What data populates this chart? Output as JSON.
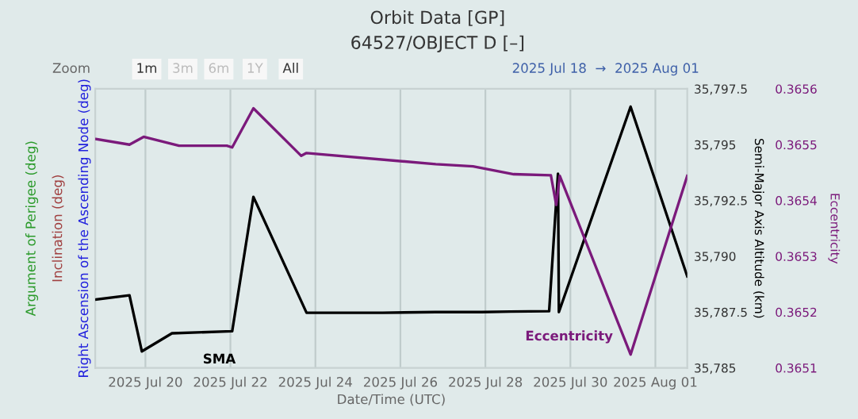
{
  "chart_data": {
    "type": "line",
    "title": "Orbit Data [GP]",
    "subtitle": "64527/OBJECT D [–]",
    "xlabel": "Date/Time (UTC)",
    "ylabel": "Right Ascension of the Ascending Node (deg)",
    "y2label": "Semi-Major Axis Altitude (km)",
    "y3label": "Eccentricity",
    "annotations": [
      "Argument of Perigee (deg)",
      "Inclination (deg)",
      "Zoom",
      "1m",
      "3m",
      "6m",
      "1Y",
      "All",
      "2025 Jul 18  →  2025 Aug 01"
    ],
    "xlim": [
      "2025-07-18T19:40",
      "2025-08-01T18:00"
    ],
    "xticks": [
      {
        "value": "2025-07-20",
        "label": "2025 Jul 20"
      },
      {
        "value": "2025-07-22",
        "label": "2025 Jul 22"
      },
      {
        "value": "2025-07-24",
        "label": "2025 Jul 24"
      },
      {
        "value": "2025-07-26",
        "label": "2025 Jul 26"
      },
      {
        "value": "2025-07-28",
        "label": "2025 Jul 28"
      },
      {
        "value": "2025-07-30",
        "label": "2025 Jul 30"
      },
      {
        "value": "2025-08-01",
        "label": "2025 Aug 01"
      }
    ],
    "y2lim": [
      35785,
      35797.5
    ],
    "y2ticks": [
      {
        "value": 35785,
        "label": "35,785"
      },
      {
        "value": 35787.5,
        "label": "35,787.5"
      },
      {
        "value": 35790,
        "label": "35,790"
      },
      {
        "value": 35792.5,
        "label": "35,792.5"
      },
      {
        "value": 35795,
        "label": "35,795"
      },
      {
        "value": 35797.5,
        "label": "35,797.5"
      }
    ],
    "y3lim": [
      0.3651,
      0.3656
    ],
    "y3ticks": [
      0.3651,
      0.3652,
      0.3653,
      0.3654,
      0.3655,
      0.3656
    ],
    "grid": "x",
    "legend": false,
    "marker": "none",
    "line_style": "solid",
    "series": [
      {
        "name": "SMA",
        "color": "#000000",
        "axis": "y2",
        "x": [
          "2025-07-18T20:00",
          "2025-07-19T15:00",
          "2025-07-19T22:00",
          "2025-07-20T15:00",
          "2025-07-22T01:00",
          "2025-07-22T13:00",
          "2025-07-23T19:00",
          "2025-07-24T17:00",
          "2025-07-25T14:00",
          "2025-07-26T20:00",
          "2025-07-27T17:00",
          "2025-07-27T22:00",
          "2025-07-28T14:00",
          "2025-07-29T12:00",
          "2025-07-29T17:00",
          "2025-07-29T17:30",
          "2025-07-31T10:00",
          "2025-08-01T18:00"
        ],
        "values": [
          35788.06,
          35788.25,
          35785.74,
          35786.55,
          35786.64,
          35792.66,
          35787.47,
          35787.47,
          35787.47,
          35787.5,
          35787.5,
          35787.5,
          35787.52,
          35787.54,
          35793.7,
          35787.5,
          35796.7,
          35789.1
        ]
      },
      {
        "name": "Eccentricity",
        "color": "#7b1a7b",
        "axis": "y3",
        "x": [
          "2025-07-18T20:00",
          "2025-07-19T15:00",
          "2025-07-19T23:00",
          "2025-07-20T19:00",
          "2025-07-21T22:00",
          "2025-07-22T01:00",
          "2025-07-22T13:00",
          "2025-07-23T16:00",
          "2025-07-23T19:00",
          "2025-07-26T20:00",
          "2025-07-27T17:00",
          "2025-07-28T16:00",
          "2025-07-29T13:00",
          "2025-07-29T16:00",
          "2025-07-29T18:00",
          "2025-07-31T10:00",
          "2025-08-01T18:00"
        ],
        "values": [
          0.36551,
          0.3655,
          0.365514,
          0.365498,
          0.365498,
          0.365495,
          0.365565,
          0.36548,
          0.365485,
          0.365465,
          0.365461,
          0.365447,
          0.365445,
          0.365392,
          0.365444,
          0.365124,
          0.365444
        ]
      }
    ]
  }
}
